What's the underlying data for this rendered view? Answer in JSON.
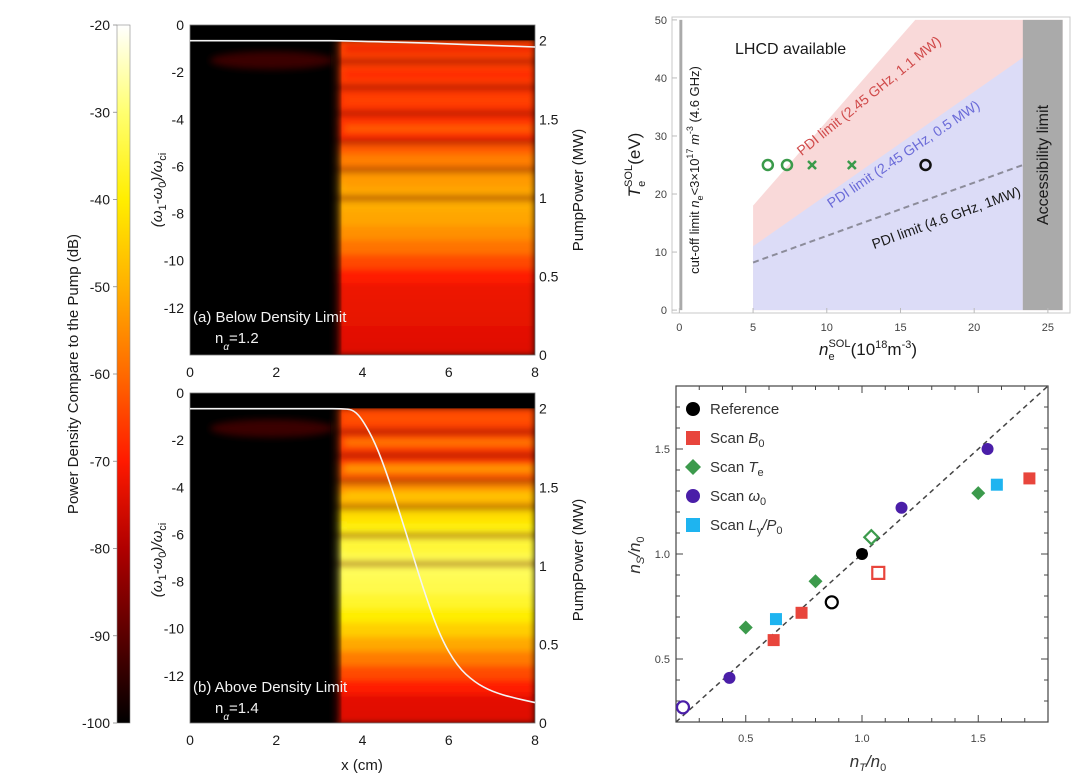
{
  "figure_title": "",
  "chart_data": [
    {
      "id": "colorbar",
      "type": "heatmap",
      "title": "",
      "label": "Power Density Compare to the Pump (dB)",
      "range": [
        -100,
        -20
      ],
      "ticks": [
        "-20",
        "-30",
        "-40",
        "-50",
        "-60",
        "-70",
        "-80",
        "-90",
        "-100"
      ],
      "tick_values": [
        -20,
        -30,
        -40,
        -50,
        -60,
        -70,
        -80,
        -90,
        -100
      ],
      "colormap": "hot",
      "colors": [
        "#000000",
        "#5a0000",
        "#b00000",
        "#ff1a00",
        "#ff6a00",
        "#ffb000",
        "#ffee00",
        "#ffff70",
        "#ffffff"
      ]
    },
    {
      "id": "panel-a",
      "type": "heatmap",
      "annotation": "(a) Below Density Limit",
      "annotation2": "n",
      "annotation2_sub": "α",
      "annotation2_value": "=1.2",
      "xlabel": "",
      "ylabel": "(ω1-ω0)/ωci",
      "ylabel_parts": {
        "open": "(ω",
        "s1": "1",
        "mid": "-ω",
        "s2": "0",
        "close": ")/ω",
        "s3": "ci"
      },
      "y2label": "PumpPower (MW)",
      "xlim": [
        0,
        8
      ],
      "ylim": [
        -14,
        0
      ],
      "y2lim": [
        0,
        2.1
      ],
      "xticks": [
        "0",
        "2",
        "4",
        "6",
        "8"
      ],
      "xtick_values": [
        0,
        2,
        4,
        6,
        8
      ],
      "yticks": [
        "0",
        "-2",
        "-4",
        "-6",
        "-8",
        "-10",
        "-12"
      ],
      "ytick_values": [
        0,
        -2,
        -4,
        -6,
        -8,
        -10,
        -12
      ],
      "y2ticks": [
        "0",
        "0.5",
        "1",
        "1.5",
        "2"
      ],
      "y2tick_values": [
        0,
        0.5,
        1,
        1.5,
        2
      ],
      "onset_x": 3.4,
      "peak_level": 0.62,
      "bands_y": [
        -1.0,
        -2.1,
        -3.2,
        -4.4,
        -5.6,
        -6.8
      ],
      "pump_power_curve": {
        "x": [
          0,
          1,
          2,
          3,
          3.5,
          4,
          5,
          6,
          7,
          8
        ],
        "y": [
          2.0,
          2.0,
          2.0,
          2.0,
          2.0,
          1.995,
          1.99,
          1.98,
          1.97,
          1.96
        ]
      }
    },
    {
      "id": "panel-b",
      "type": "heatmap",
      "annotation": "(b) Above Density Limit",
      "annotation2": "n",
      "annotation2_sub": "α",
      "annotation2_value": "=1.4",
      "xlabel": "x (cm)",
      "ylabel": "(ω1-ω0)/ωci",
      "ylabel_parts": {
        "open": "(ω",
        "s1": "1",
        "mid": "-ω",
        "s2": "0",
        "close": ")/ω",
        "s3": "ci"
      },
      "y2label": "PumpPower (MW)",
      "xlim": [
        0,
        8
      ],
      "ylim": [
        -14,
        0
      ],
      "y2lim": [
        0,
        2.1
      ],
      "xticks": [
        "0",
        "2",
        "4",
        "6",
        "8"
      ],
      "xtick_values": [
        0,
        2,
        4,
        6,
        8
      ],
      "yticks": [
        "0",
        "-2",
        "-4",
        "-6",
        "-8",
        "-10",
        "-12"
      ],
      "ytick_values": [
        0,
        -2,
        -4,
        -6,
        -8,
        -10,
        -12
      ],
      "y2ticks": [
        "0",
        "0.5",
        "1",
        "1.5",
        "2"
      ],
      "y2tick_values": [
        0,
        0.5,
        1,
        1.5,
        2
      ],
      "onset_x": 3.4,
      "peak_level": 0.85,
      "bands_y": [
        -1.1,
        -2.1,
        -3.2,
        -4.3,
        -5.5,
        -6.7
      ],
      "pump_power_curve": {
        "x": [
          0,
          1,
          2,
          3,
          3.6,
          3.8,
          4.0,
          4.3,
          4.6,
          5.0,
          5.4,
          5.8,
          6.2,
          6.6,
          7.0,
          7.5,
          8.0
        ],
        "y": [
          2.0,
          2.0,
          2.0,
          2.0,
          2.0,
          1.99,
          1.93,
          1.78,
          1.56,
          1.22,
          0.86,
          0.55,
          0.36,
          0.26,
          0.2,
          0.16,
          0.13
        ]
      }
    },
    {
      "id": "lhcd-window",
      "type": "area",
      "title": "",
      "xlabel": "n_e^SOL(10^18 m^-3)",
      "xlabel_parts": {
        "base": "n",
        "sup": "SOL",
        "sub": "e",
        "rest": "(10",
        "rest_sup": "18",
        "rest2": "m",
        "rest2_sup": "-3",
        "rest3": ")"
      },
      "ylabel": "T_e^SOL(eV)",
      "ylabel_parts": {
        "base": "T",
        "sup": "SOL",
        "sub": "e",
        "rest": "(eV)"
      },
      "xlim": [
        -0.5,
        26.5
      ],
      "ylim": [
        -0.5,
        50.5
      ],
      "xticks": [
        "0",
        "5",
        "10",
        "15",
        "20",
        "25"
      ],
      "xtick_values": [
        0,
        5,
        10,
        15,
        20,
        25
      ],
      "yticks": [
        "0",
        "10",
        "20",
        "30",
        "40",
        "50"
      ],
      "ytick_values": [
        0,
        10,
        20,
        30,
        40,
        50
      ],
      "grid": false,
      "regions": [
        {
          "name": "PDI limit (2.45 GHz, 1.1 MW)",
          "color": "#f9d9d9",
          "x": [
            5,
            5,
            16,
            26,
            26,
            23.3,
            5
          ],
          "y": [
            0,
            18,
            50,
            50,
            0,
            0,
            0
          ],
          "label_color": "#d04a4a"
        },
        {
          "name": "PDI limit (2.45 GHz, 0.5 MW)",
          "color": "#dcdcf7",
          "x": [
            5,
            5,
            23.3,
            23.3
          ],
          "y": [
            0,
            11,
            43.5,
            0
          ],
          "label_color": "#6b6bd8"
        },
        {
          "name": "Accessibility limit",
          "color": "#aaaaaa",
          "x": [
            23.3,
            23.3,
            26,
            26
          ],
          "y": [
            0,
            50,
            50,
            0
          ],
          "label_color": "#1a1a1a"
        },
        {
          "name": "cut-off limit",
          "color": "#aaaaaa",
          "x": [
            0,
            0,
            0.2,
            0.2
          ],
          "y": [
            0,
            50,
            50,
            0
          ],
          "label_color": "#1a1a1a"
        }
      ],
      "lines": [
        {
          "name": "PDI limit (4.6 GHz, 1MW)",
          "style": "dashed",
          "color": "#8c8c9a",
          "x": [
            5,
            23.3
          ],
          "y": [
            8.2,
            25
          ]
        }
      ],
      "points": [
        {
          "x": 6.0,
          "y": 25,
          "marker": "open-circle",
          "color": "#3a9a4a"
        },
        {
          "x": 7.3,
          "y": 25,
          "marker": "open-circle",
          "color": "#3a9a4a"
        },
        {
          "x": 9.0,
          "y": 25,
          "marker": "x",
          "color": "#3a9a4a"
        },
        {
          "x": 11.7,
          "y": 25,
          "marker": "x",
          "color": "#3a9a4a"
        },
        {
          "x": 16.7,
          "y": 25,
          "marker": "open-circle",
          "color": "#111111"
        }
      ],
      "annotations": {
        "lhcd": "LHCD available",
        "pdi_red": "PDI limit (2.45 GHz, 1.1 MW)",
        "pdi_blue": "PDI limit (2.45 GHz, 0.5 MW)",
        "pdi_black": "PDI limit (4.6 GHz, 1MW)",
        "accessibility": "Accessibility limit",
        "cutoff_a": "cut-off limit ",
        "cutoff_n": "n",
        "cutoff_e": "e",
        "cutoff_b": "<3×10",
        "cutoff_17": "17",
        "cutoff_m": " m",
        "cutoff_m3": "-3",
        "cutoff_c": " (4.6 GHz)"
      }
    },
    {
      "id": "nt-ns-scatter",
      "type": "scatter",
      "title": "",
      "xlabel": "n_T/n_0",
      "ylabel": "n_S/n_0",
      "xlabel_parts": {
        "a": "n",
        "s1": "T",
        "b": "/n",
        "s2": "0"
      },
      "ylabel_parts": {
        "a": "n",
        "s1": "S",
        "b": "/n",
        "s2": "0"
      },
      "xlim": [
        0.2,
        1.8
      ],
      "ylim": [
        0.2,
        1.8
      ],
      "xticks": [
        "0.5",
        "1.0",
        "1.5"
      ],
      "xtick_values": [
        0.5,
        1.0,
        1.5
      ],
      "yticks": [
        "0.5",
        "1.0",
        "1.5"
      ],
      "ytick_values": [
        0.5,
        1.0,
        1.5
      ],
      "legend_position": "top-left",
      "reference_line": {
        "style": "dashed",
        "x": [
          0.2,
          1.8
        ],
        "y": [
          0.2,
          1.8
        ]
      },
      "series": [
        {
          "name": "Reference",
          "legend": {
            "base": "Reference"
          },
          "marker": "circle",
          "color": "#000000",
          "points": [
            {
              "x": 1.0,
              "y": 1.0,
              "open": false
            },
            {
              "x": 0.87,
              "y": 0.77,
              "open": true
            }
          ]
        },
        {
          "name": "Scan B0",
          "legend": {
            "base": "Scan ",
            "var": "B",
            "sub": "0"
          },
          "marker": "square",
          "color": "#e8453c",
          "points": [
            {
              "x": 0.62,
              "y": 0.59,
              "open": false
            },
            {
              "x": 0.74,
              "y": 0.72,
              "open": false
            },
            {
              "x": 1.07,
              "y": 0.91,
              "open": true
            },
            {
              "x": 1.72,
              "y": 1.36,
              "open": false
            }
          ]
        },
        {
          "name": "Scan Te",
          "legend": {
            "base": "Scan ",
            "var": "T",
            "sub": "e"
          },
          "marker": "diamond",
          "color": "#3c9a4c",
          "points": [
            {
              "x": 0.5,
              "y": 0.65,
              "open": false
            },
            {
              "x": 0.8,
              "y": 0.87,
              "open": false
            },
            {
              "x": 1.04,
              "y": 1.08,
              "open": true
            },
            {
              "x": 1.5,
              "y": 1.29,
              "open": false
            }
          ]
        },
        {
          "name": "Scan ω0",
          "legend": {
            "base": "Scan ",
            "var": "ω",
            "sub": "0"
          },
          "marker": "circle",
          "color": "#4a1ea8",
          "points": [
            {
              "x": 0.23,
              "y": 0.27,
              "open": true
            },
            {
              "x": 0.43,
              "y": 0.41,
              "open": false
            },
            {
              "x": 1.17,
              "y": 1.22,
              "open": false
            },
            {
              "x": 1.54,
              "y": 1.5,
              "open": false
            }
          ]
        },
        {
          "name": "Scan Ly/P0",
          "legend": {
            "base": "Scan ",
            "var": "L",
            "sub": "y",
            "tail": "/P",
            "sub2": "0"
          },
          "marker": "square",
          "color": "#1eb4f0",
          "points": [
            {
              "x": 0.63,
              "y": 0.69,
              "open": false
            },
            {
              "x": 1.58,
              "y": 1.33,
              "open": false
            }
          ]
        }
      ]
    }
  ]
}
